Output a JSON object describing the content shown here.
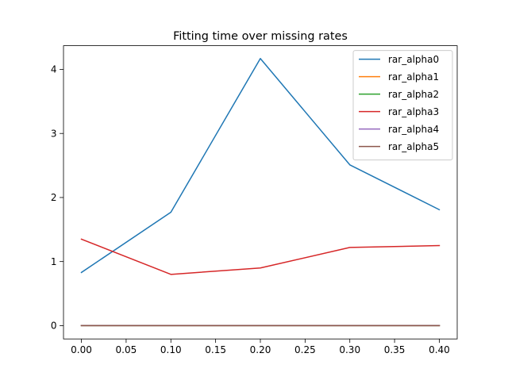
{
  "chart_data": {
    "type": "line",
    "title": "Fitting time over missing rates",
    "xlabel": "",
    "ylabel": "",
    "x": [
      0.0,
      0.1,
      0.2,
      0.3,
      0.4
    ],
    "xlim": [
      -0.02,
      0.42
    ],
    "ylim": [
      -0.208,
      4.37
    ],
    "xticks": [
      0.0,
      0.05,
      0.1,
      0.15,
      0.2,
      0.25,
      0.3,
      0.35,
      0.4
    ],
    "xtick_labels": [
      "0.00",
      "0.05",
      "0.10",
      "0.15",
      "0.20",
      "0.25",
      "0.30",
      "0.35",
      "0.40"
    ],
    "yticks": [
      0,
      1,
      2,
      3,
      4
    ],
    "ytick_labels": [
      "0",
      "1",
      "2",
      "3",
      "4"
    ],
    "grid": false,
    "legend_position": "top-right",
    "series": [
      {
        "name": "rar_alpha0",
        "color": "#1f77b4",
        "values": [
          0.83,
          1.77,
          4.17,
          2.51,
          1.81
        ]
      },
      {
        "name": "rar_alpha1",
        "color": "#ff7f0e",
        "values": [
          0.0,
          0.0,
          0.0,
          0.0,
          0.0
        ]
      },
      {
        "name": "rar_alpha2",
        "color": "#2ca02c",
        "values": [
          0.0,
          0.0,
          0.0,
          0.0,
          0.0
        ]
      },
      {
        "name": "rar_alpha3",
        "color": "#d62728",
        "values": [
          1.35,
          0.8,
          0.9,
          1.22,
          1.25
        ]
      },
      {
        "name": "rar_alpha4",
        "color": "#9467bd",
        "values": [
          0.0,
          0.0,
          0.0,
          0.0,
          0.0
        ]
      },
      {
        "name": "rar_alpha5",
        "color": "#8c564b",
        "values": [
          0.0,
          0.0,
          0.0,
          0.0,
          0.0
        ]
      }
    ]
  }
}
